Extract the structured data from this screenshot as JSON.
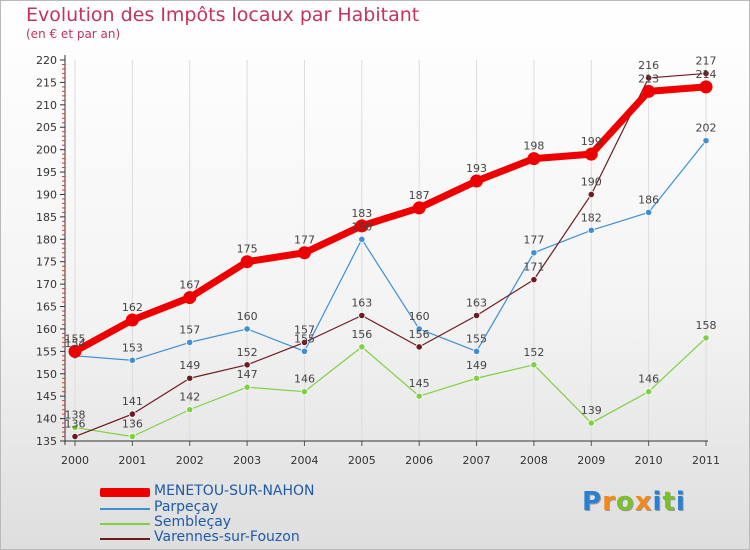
{
  "header": {
    "title": "Evolution des Impôts locaux par Habitant",
    "subtitle": "(en € et par an)"
  },
  "branding": {
    "letters": [
      "P",
      "r",
      "o",
      "x",
      "i",
      "t",
      "i"
    ],
    "colors": [
      "#2b7fd0",
      "#f28a1b",
      "#7bbf2a",
      "#f28a1b",
      "#2b7fd0",
      "#7bbf2a",
      "#2b7fd0"
    ]
  },
  "chart_data": {
    "type": "line",
    "title": "Evolution des Impôts locaux par Habitant",
    "subtitle": "(en € et par an)",
    "x": [
      "2000",
      "2001",
      "2002",
      "2003",
      "2004",
      "2005",
      "2006",
      "2007",
      "2008",
      "2009",
      "2010",
      "2011"
    ],
    "ylim": [
      135,
      220
    ],
    "ystep": 5,
    "grid": "vertical",
    "legend_position": "bottom-left",
    "series": [
      {
        "name": "MENETOU-SUR-NAHON",
        "color": "#ee0000",
        "emphasis": true,
        "values": [
          155,
          162,
          167,
          175,
          177,
          183,
          187,
          193,
          198,
          199,
          213,
          214
        ],
        "labels": [
          "155",
          "162",
          "167",
          "175",
          "177",
          "183",
          "187",
          "193",
          "198",
          "199",
          "213",
          "214"
        ]
      },
      {
        "name": "Parpeçay",
        "color": "#3e8fd3",
        "values": [
          154,
          153,
          157,
          160,
          155,
          180,
          160,
          155,
          177,
          182,
          186,
          202
        ],
        "labels": [
          "154",
          "153",
          "157",
          "160",
          "155",
          "180",
          "160",
          "155",
          "177",
          "182",
          "186",
          "202"
        ]
      },
      {
        "name": "Sembleçay",
        "color": "#7fd043",
        "values": [
          138,
          136,
          142,
          147,
          146,
          156,
          145,
          149,
          152,
          139,
          146,
          158
        ],
        "labels": [
          "138",
          "136",
          "142",
          "147",
          "146",
          "156",
          "145",
          "149",
          "152",
          "139",
          "146",
          "158"
        ]
      },
      {
        "name": "Varennes-sur-Fouzon",
        "color": "#6e1a22",
        "values": [
          136,
          141,
          149,
          152,
          157,
          163,
          156,
          163,
          171,
          190,
          216,
          217
        ],
        "labels": [
          "136",
          "141",
          "149",
          "152",
          "157",
          "163",
          "156",
          "163",
          "171",
          "190",
          "216",
          "217"
        ]
      }
    ]
  }
}
